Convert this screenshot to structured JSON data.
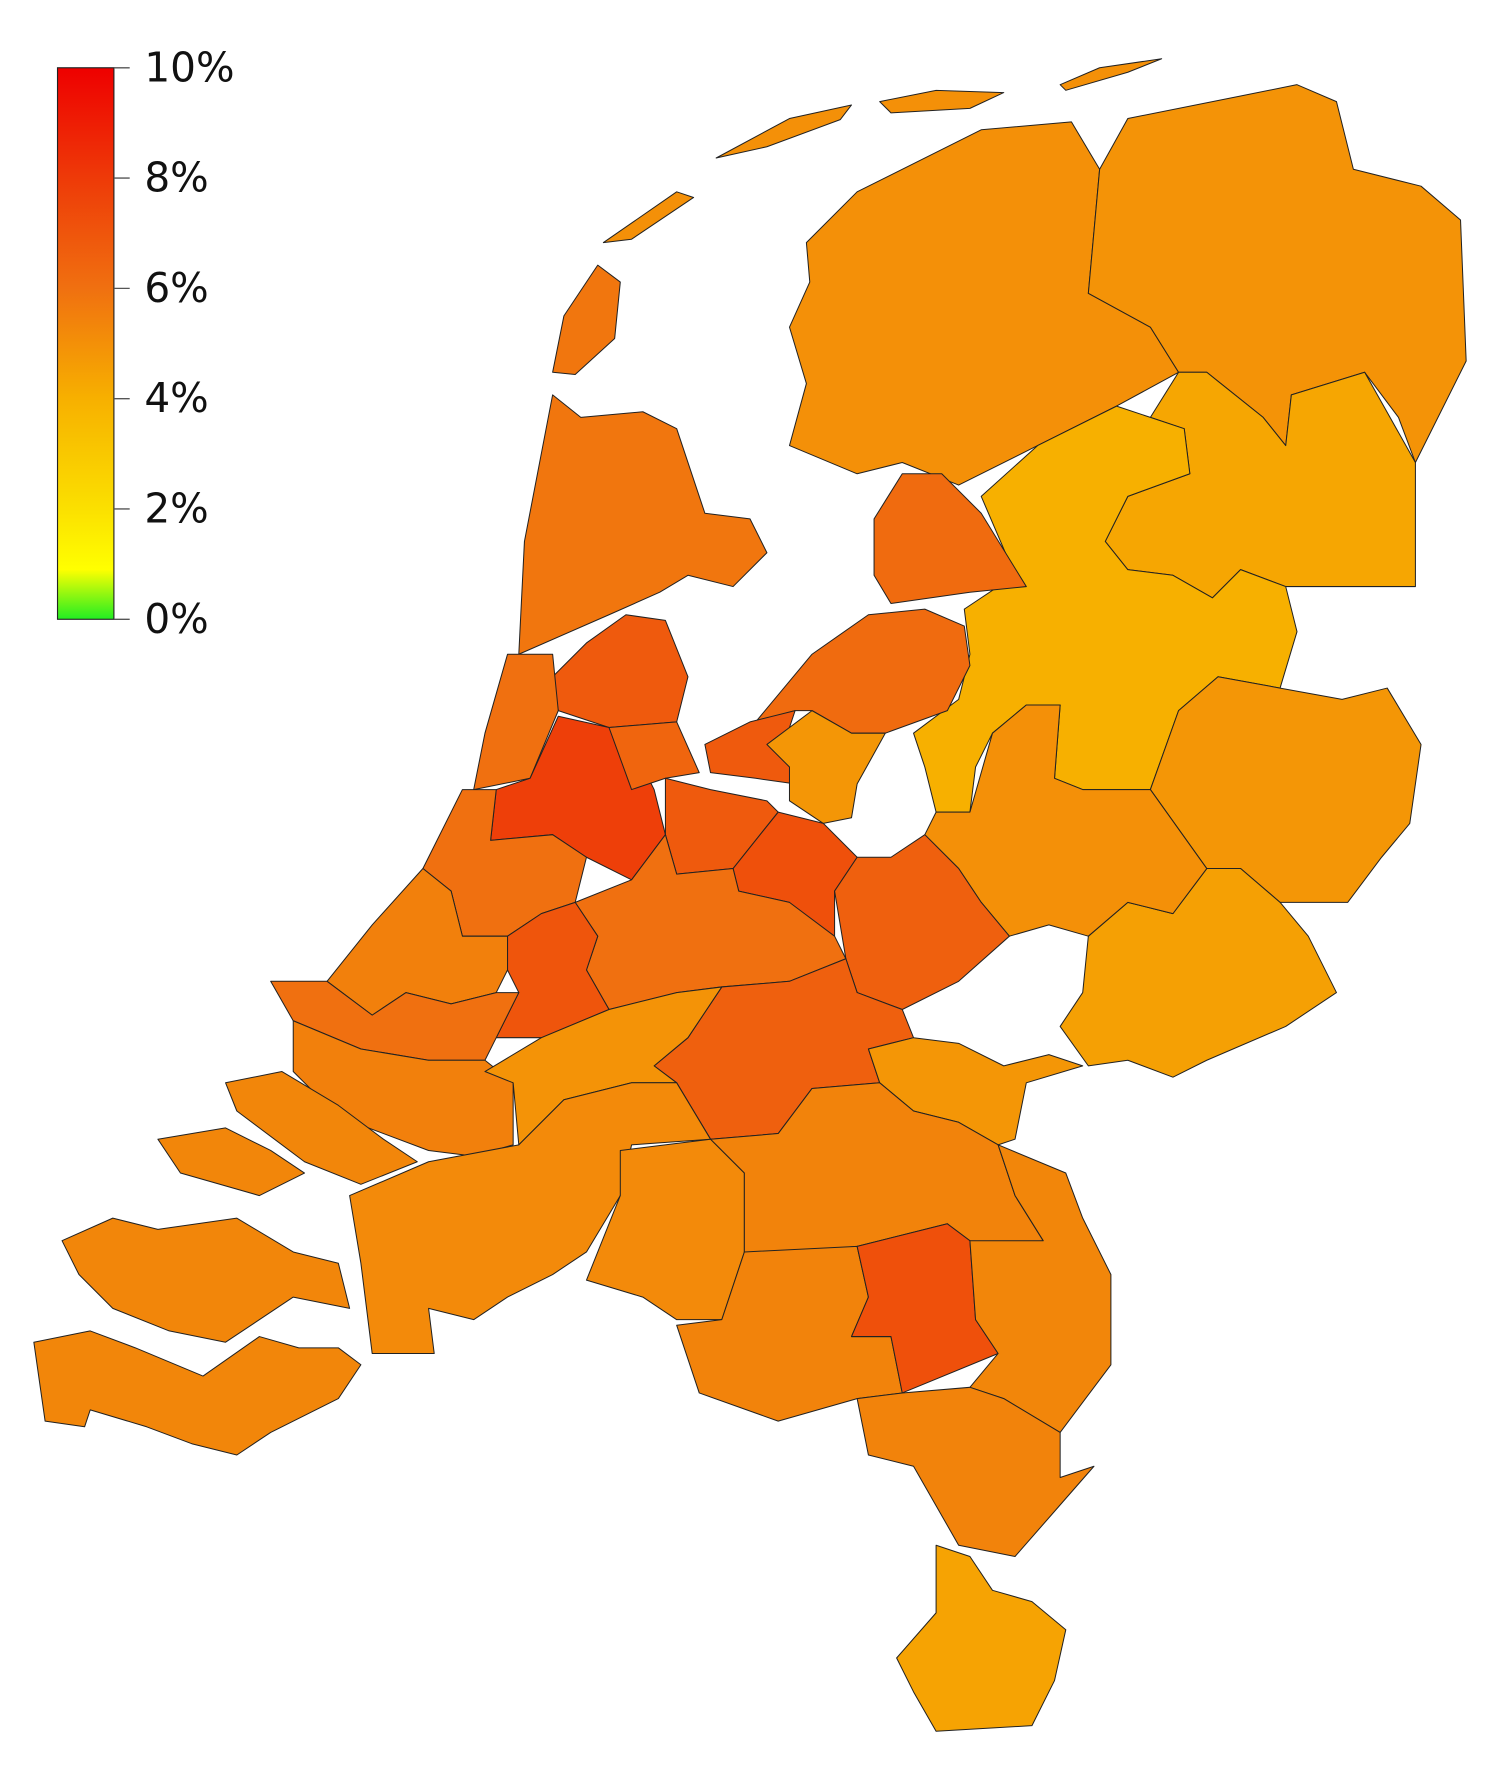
{
  "legend": {
    "ticks": [
      {
        "value": 0,
        "label": "0%"
      },
      {
        "value": 2,
        "label": "2%"
      },
      {
        "value": 4,
        "label": "4%"
      },
      {
        "value": 6,
        "label": "6%"
      },
      {
        "value": 8,
        "label": "8%"
      },
      {
        "value": 10,
        "label": "10%"
      }
    ],
    "range": [
      0,
      10
    ],
    "colorscale": [
      {
        "value": 0,
        "color": "#22ee22"
      },
      {
        "value": 0.9,
        "color": "#ffff00"
      },
      {
        "value": 2,
        "color": "#fbe000"
      },
      {
        "value": 4,
        "color": "#f7b000"
      },
      {
        "value": 6,
        "color": "#f07010"
      },
      {
        "value": 8,
        "color": "#ee3a08"
      },
      {
        "value": 10,
        "color": "#ee0000"
      }
    ]
  },
  "regions": {
    "values_percent": [
      5.0,
      4.9,
      4.3,
      4.0,
      4.8,
      4.5,
      5.0,
      6.2,
      6.2,
      6.8,
      4.8,
      5.8,
      6.8,
      6.0,
      7.8,
      6.4,
      6.8,
      7.2,
      6.6,
      6.0,
      6.0,
      7.0,
      5.5,
      6.0,
      6.6,
      4.8,
      5.5,
      4.9,
      5.2,
      5.2,
      5.4,
      5.4,
      7.2,
      5.3,
      5.4,
      4.4,
      5.3,
      5.3,
      5.3,
      5.3
    ]
  }
}
